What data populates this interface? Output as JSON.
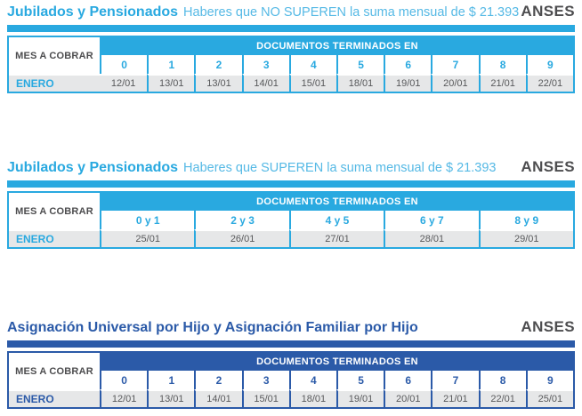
{
  "colors": {
    "cyan_accent": "#29A9E0",
    "cyan_subtitle": "#55B9E5",
    "navy_accent": "#2B5AA8",
    "row_gray": "#E6E7E8",
    "date_text": "#58595B",
    "brand_text": "#4D4D4F"
  },
  "sections": [
    {
      "title": "Jubilados y Pensionados",
      "subtitle": "Haberes que NO SUPEREN la suma mensual de $ 21.393",
      "brand": "ANSES",
      "theme": "cyan",
      "table": {
        "row_header": "MES A COBRAR",
        "col_group_header": "DOCUMENTOS TERMINADOS EN",
        "columns": [
          "0",
          "1",
          "2",
          "3",
          "4",
          "5",
          "6",
          "7",
          "8",
          "9"
        ],
        "rows": [
          {
            "label": "ENERO",
            "values": [
              "12/01",
              "13/01",
              "13/01",
              "14/01",
              "15/01",
              "18/01",
              "19/01",
              "20/01",
              "21/01",
              "22/01"
            ]
          }
        ]
      }
    },
    {
      "title": "Jubilados y Pensionados",
      "subtitle": "Haberes que SUPEREN la suma mensual de $ 21.393",
      "brand": "ANSES",
      "theme": "cyan",
      "table": {
        "row_header": "MES A COBRAR",
        "col_group_header": "DOCUMENTOS TERMINADOS EN",
        "columns": [
          "0 y 1",
          "2 y 3",
          "4 y 5",
          "6 y 7",
          "8 y 9"
        ],
        "rows": [
          {
            "label": "ENERO",
            "values": [
              "25/01",
              "26/01",
              "27/01",
              "28/01",
              "29/01"
            ]
          }
        ]
      }
    },
    {
      "title": "Asignación Universal por Hijo y Asignación Familiar por Hijo",
      "subtitle": "",
      "brand": "ANSES",
      "theme": "navy",
      "table": {
        "row_header": "MES A COBRAR",
        "col_group_header": "DOCUMENTOS TERMINADOS EN",
        "columns": [
          "0",
          "1",
          "2",
          "3",
          "4",
          "5",
          "6",
          "7",
          "8",
          "9"
        ],
        "rows": [
          {
            "label": "ENERO",
            "values": [
              "12/01",
              "13/01",
              "14/01",
              "15/01",
              "18/01",
              "19/01",
              "20/01",
              "21/01",
              "22/01",
              "25/01"
            ]
          }
        ]
      }
    }
  ]
}
